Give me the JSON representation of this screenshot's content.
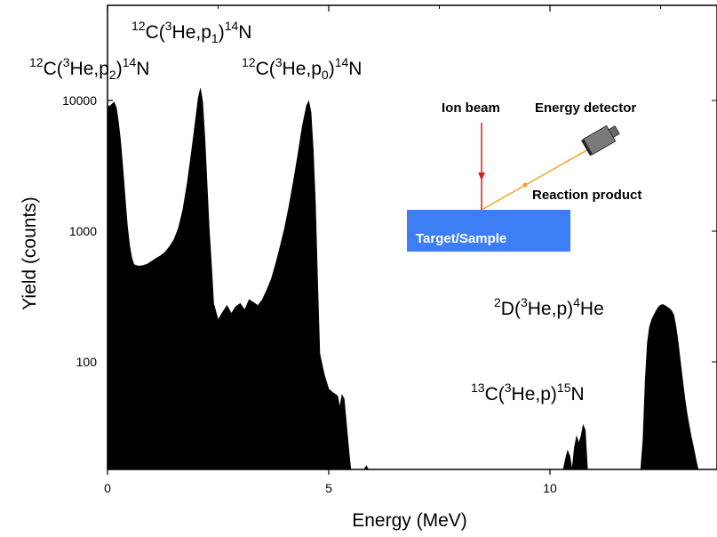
{
  "chart_data": {
    "type": "area",
    "xlabel": "Energy (MeV)",
    "ylabel": "Yield (counts)",
    "xlim": [
      -0.3,
      13.6
    ],
    "ylim_log": [
      13,
      18000
    ],
    "y_scale": "log",
    "x_ticks": [
      0,
      5,
      10
    ],
    "x_tick_labels": [
      "0",
      "5",
      "10"
    ],
    "y_ticks": [
      100,
      1000,
      10000
    ],
    "y_tick_labels": [
      "100",
      "1000",
      "10000"
    ],
    "spectrum": [
      [
        0.0,
        9200
      ],
      [
        0.05,
        9000
      ],
      [
        0.1,
        9400
      ],
      [
        0.15,
        9700
      ],
      [
        0.2,
        8800
      ],
      [
        0.25,
        6800
      ],
      [
        0.3,
        4800
      ],
      [
        0.35,
        3000
      ],
      [
        0.4,
        1800
      ],
      [
        0.45,
        1100
      ],
      [
        0.5,
        780
      ],
      [
        0.55,
        620
      ],
      [
        0.6,
        555
      ],
      [
        0.7,
        540
      ],
      [
        0.8,
        545
      ],
      [
        0.9,
        560
      ],
      [
        1.0,
        590
      ],
      [
        1.1,
        620
      ],
      [
        1.2,
        650
      ],
      [
        1.3,
        690
      ],
      [
        1.4,
        760
      ],
      [
        1.5,
        860
      ],
      [
        1.6,
        1050
      ],
      [
        1.7,
        1450
      ],
      [
        1.8,
        2300
      ],
      [
        1.9,
        4100
      ],
      [
        2.0,
        7600
      ],
      [
        2.05,
        10500
      ],
      [
        2.1,
        12400
      ],
      [
        2.15,
        9800
      ],
      [
        2.2,
        5200
      ],
      [
        2.25,
        2300
      ],
      [
        2.3,
        1050
      ],
      [
        2.35,
        560
      ],
      [
        2.4,
        280
      ],
      [
        2.5,
        210
      ],
      [
        2.6,
        240
      ],
      [
        2.7,
        270
      ],
      [
        2.8,
        235
      ],
      [
        2.9,
        265
      ],
      [
        3.0,
        280
      ],
      [
        3.1,
        250
      ],
      [
        3.2,
        300
      ],
      [
        3.3,
        285
      ],
      [
        3.4,
        270
      ],
      [
        3.5,
        300
      ],
      [
        3.6,
        355
      ],
      [
        3.7,
        430
      ],
      [
        3.8,
        560
      ],
      [
        3.9,
        760
      ],
      [
        4.0,
        1050
      ],
      [
        4.1,
        1550
      ],
      [
        4.2,
        2400
      ],
      [
        4.3,
        3800
      ],
      [
        4.4,
        6300
      ],
      [
        4.5,
        9200
      ],
      [
        4.55,
        9900
      ],
      [
        4.6,
        8100
      ],
      [
        4.65,
        4200
      ],
      [
        4.7,
        1600
      ],
      [
        4.75,
        420
      ],
      [
        4.8,
        115
      ],
      [
        4.9,
        80
      ],
      [
        5.0,
        62
      ],
      [
        5.1,
        58
      ],
      [
        5.2,
        55
      ],
      [
        5.25,
        45
      ],
      [
        5.3,
        56
      ],
      [
        5.35,
        52
      ],
      [
        5.4,
        34
      ],
      [
        5.45,
        22
      ],
      [
        5.5,
        13
      ],
      [
        5.8,
        13
      ],
      [
        5.85,
        16
      ],
      [
        5.9,
        13
      ],
      [
        6.3,
        13
      ],
      [
        9.9,
        13
      ],
      [
        9.95,
        15
      ],
      [
        10.0,
        13
      ],
      [
        10.3,
        13
      ],
      [
        10.35,
        18
      ],
      [
        10.4,
        21
      ],
      [
        10.45,
        19
      ],
      [
        10.5,
        15
      ],
      [
        10.55,
        22
      ],
      [
        10.6,
        27
      ],
      [
        10.65,
        24
      ],
      [
        10.7,
        27
      ],
      [
        10.75,
        33
      ],
      [
        10.8,
        30
      ],
      [
        10.85,
        13
      ],
      [
        11.3,
        13
      ],
      [
        11.35,
        15
      ],
      [
        11.4,
        13
      ],
      [
        11.6,
        13
      ],
      [
        11.65,
        15
      ],
      [
        11.7,
        13
      ],
      [
        12.05,
        13
      ],
      [
        12.1,
        25
      ],
      [
        12.15,
        70
      ],
      [
        12.2,
        140
      ],
      [
        12.25,
        185
      ],
      [
        12.3,
        210
      ],
      [
        12.35,
        228
      ],
      [
        12.4,
        246
      ],
      [
        12.45,
        262
      ],
      [
        12.5,
        272
      ],
      [
        12.55,
        275
      ],
      [
        12.6,
        270
      ],
      [
        12.65,
        262
      ],
      [
        12.7,
        256
      ],
      [
        12.75,
        246
      ],
      [
        12.8,
        228
      ],
      [
        12.85,
        185
      ],
      [
        12.9,
        140
      ],
      [
        12.95,
        100
      ],
      [
        13.0,
        72
      ],
      [
        13.05,
        52
      ],
      [
        13.1,
        40
      ],
      [
        13.15,
        32
      ],
      [
        13.2,
        26
      ],
      [
        13.25,
        22
      ],
      [
        13.3,
        18
      ],
      [
        13.35,
        13
      ]
    ],
    "annotations": [
      {
        "id": "p1",
        "prefix_sup": "12",
        "body_a": "C(",
        "mid_sup": "3",
        "body_b": "He,p",
        "sub": "1",
        "body_c": ")",
        "suffix_sup": "14",
        "body_d": "N"
      },
      {
        "id": "p2",
        "prefix_sup": "12",
        "body_a": "C(",
        "mid_sup": "3",
        "body_b": "He,p",
        "sub": "2",
        "body_c": ")",
        "suffix_sup": "14",
        "body_d": "N"
      },
      {
        "id": "p0",
        "prefix_sup": "12",
        "body_a": "C(",
        "mid_sup": "3",
        "body_b": "He,p",
        "sub": "0",
        "body_c": ")",
        "suffix_sup": "14",
        "body_d": "N"
      },
      {
        "id": "d",
        "prefix_sup": "2",
        "body_a": "D(",
        "mid_sup": "3",
        "body_b": "He,p)",
        "sub": "",
        "body_c": "",
        "suffix_sup": "4",
        "body_d": "He"
      },
      {
        "id": "c13",
        "prefix_sup": "13",
        "body_a": "C(",
        "mid_sup": "3",
        "body_b": "He,p)",
        "sub": "",
        "body_c": "",
        "suffix_sup": "15",
        "body_d": "N"
      }
    ]
  },
  "inset": {
    "ion_beam": "Ion beam",
    "energy_detector": "Energy detector",
    "reaction_product": "Reaction product",
    "target": "Target/Sample",
    "target_color": "#3d7ef5",
    "beam_color": "#d62020",
    "product_color": "#f5a020"
  }
}
